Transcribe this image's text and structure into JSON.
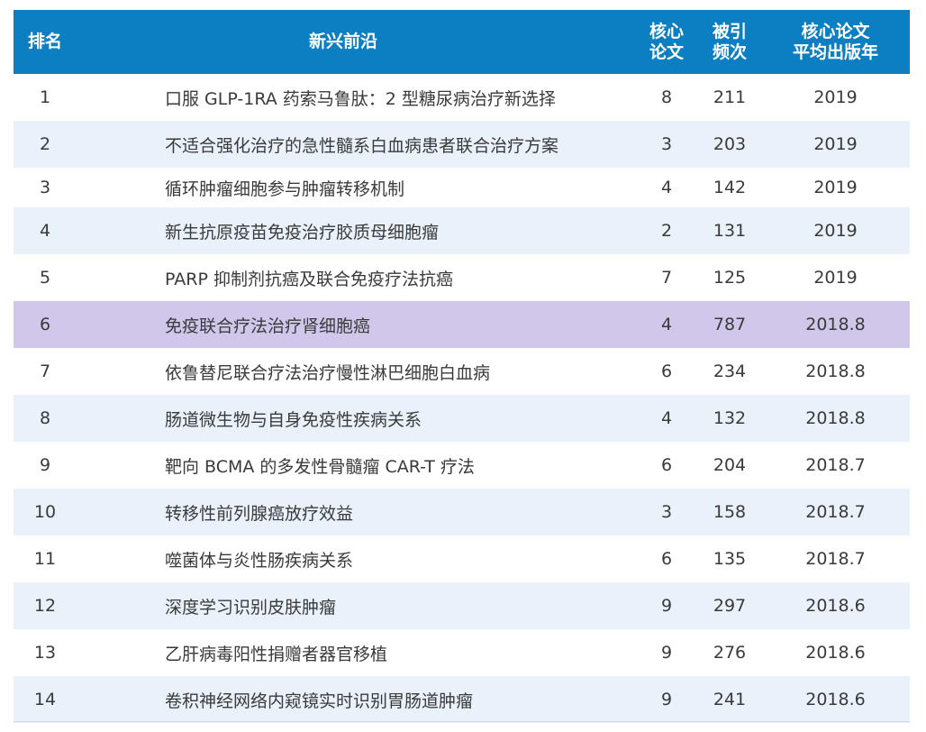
{
  "colors": {
    "header_bg": "#0b7fc2",
    "header_text": "#ffffff",
    "stripe": "#e9f2fa",
    "highlight": "#d1c7eb"
  },
  "header": {
    "rank": "排名",
    "topic": "新兴前沿",
    "core_papers": [
      "核心",
      "论文"
    ],
    "citations": [
      "被引",
      "频次"
    ],
    "avg_year": [
      "核心论文",
      "平均出版年"
    ]
  },
  "rows": [
    {
      "rank": "1",
      "topic": "口服 GLP-1RA 药索马鲁肽：2 型糖尿病治疗新选择",
      "core": "8",
      "cite": "211",
      "year": "2019"
    },
    {
      "rank": "2",
      "topic": "不适合强化治疗的急性髓系白血病患者联合治疗方案",
      "core": "3",
      "cite": "203",
      "year": "2019"
    },
    {
      "rank": "3",
      "topic": "循环肿瘤细胞参与肿瘤转移机制",
      "core": "4",
      "cite": "142",
      "year": "2019"
    },
    {
      "rank": "4",
      "topic": "新生抗原疫苗免疫治疗胶质母细胞瘤",
      "core": "2",
      "cite": "131",
      "year": "2019"
    },
    {
      "rank": "5",
      "topic": "PARP 抑制剂抗癌及联合免疫疗法抗癌",
      "core": "7",
      "cite": "125",
      "year": "2019"
    },
    {
      "rank": "6",
      "topic": "免疫联合疗法治疗肾细胞癌",
      "core": "4",
      "cite": "787",
      "year": "2018.8"
    },
    {
      "rank": "7",
      "topic": "依鲁替尼联合疗法治疗慢性淋巴细胞白血病",
      "core": "6",
      "cite": "234",
      "year": "2018.8"
    },
    {
      "rank": "8",
      "topic": "肠道微生物与自身免疫性疾病关系",
      "core": "4",
      "cite": "132",
      "year": "2018.8"
    },
    {
      "rank": "9",
      "topic": "靶向 BCMA 的多发性骨髓瘤 CAR-T 疗法",
      "core": "6",
      "cite": "204",
      "year": "2018.7"
    },
    {
      "rank": "10",
      "topic": "转移性前列腺癌放疗效益",
      "core": "3",
      "cite": "158",
      "year": "2018.7"
    },
    {
      "rank": "11",
      "topic": "噬菌体与炎性肠疾病关系",
      "core": "6",
      "cite": "135",
      "year": "2018.7"
    },
    {
      "rank": "12",
      "topic": "深度学习识别皮肤肿瘤",
      "core": "9",
      "cite": "297",
      "year": "2018.6"
    },
    {
      "rank": "13",
      "topic": "乙肝病毒阳性捐赠者器官移植",
      "core": "9",
      "cite": "276",
      "year": "2018.6"
    },
    {
      "rank": "14",
      "topic": "卷积神经网络内窥镜实时识别胃肠道肿瘤",
      "core": "9",
      "cite": "241",
      "year": "2018.6"
    }
  ]
}
